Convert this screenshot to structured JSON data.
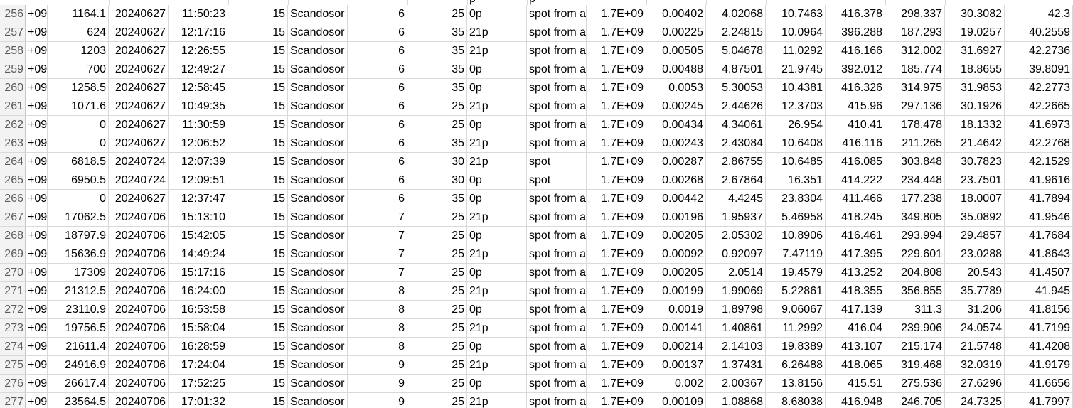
{
  "sheet": {
    "top_partial": [
      "p",
      "p"
    ],
    "rows": [
      {
        "n": "256",
        "c": [
          "+09",
          "1164.1",
          "20240627",
          "11:50:23",
          "15",
          "Scandosor",
          "6",
          "25",
          "0p",
          "spot from a",
          "1.7E+09",
          "0.00402",
          "4.02068",
          "10.7463",
          "416.378",
          "298.337",
          "30.3082",
          "42.3"
        ]
      },
      {
        "n": "257",
        "c": [
          "+09",
          "624",
          "20240627",
          "12:17:16",
          "15",
          "Scandosor",
          "6",
          "35",
          "21p",
          "spot from a",
          "1.7E+09",
          "0.00225",
          "2.24815",
          "10.0964",
          "396.288",
          "187.293",
          "19.0257",
          "40.2559"
        ]
      },
      {
        "n": "258",
        "c": [
          "+09",
          "1203",
          "20240627",
          "12:26:55",
          "15",
          "Scandosor",
          "6",
          "35",
          "21p",
          "spot from a",
          "1.7E+09",
          "0.00505",
          "5.04678",
          "11.0292",
          "416.166",
          "312.002",
          "31.6927",
          "42.2736"
        ]
      },
      {
        "n": "259",
        "c": [
          "+09",
          "700",
          "20240627",
          "12:49:27",
          "15",
          "Scandosor",
          "6",
          "35",
          "0p",
          "spot from a",
          "1.7E+09",
          "0.00488",
          "4.87501",
          "21.9745",
          "392.012",
          "185.774",
          "18.8655",
          "39.8091"
        ]
      },
      {
        "n": "260",
        "c": [
          "+09",
          "1258.5",
          "20240627",
          "12:58:45",
          "15",
          "Scandosor",
          "6",
          "35",
          "0p",
          "spot from a",
          "1.7E+09",
          "0.0053",
          "5.30053",
          "10.4381",
          "416.326",
          "314.975",
          "31.9853",
          "42.2773"
        ]
      },
      {
        "n": "261",
        "c": [
          "+09",
          "1071.6",
          "20240627",
          "10:49:35",
          "15",
          "Scandosor",
          "6",
          "25",
          "21p",
          "spot from a",
          "1.7E+09",
          "0.00245",
          "2.44626",
          "12.3703",
          "415.96",
          "297.136",
          "30.1926",
          "42.2665"
        ]
      },
      {
        "n": "262",
        "c": [
          "+09",
          "0",
          "20240627",
          "11:30:59",
          "15",
          "Scandosor",
          "6",
          "25",
          "0p",
          "spot from a",
          "1.7E+09",
          "0.00434",
          "4.34061",
          "26.954",
          "410.41",
          "178.478",
          "18.1332",
          "41.6973"
        ]
      },
      {
        "n": "263",
        "c": [
          "+09",
          "0",
          "20240627",
          "12:06:52",
          "15",
          "Scandosor",
          "6",
          "35",
          "21p",
          "spot from a",
          "1.7E+09",
          "0.00243",
          "2.43084",
          "10.6408",
          "416.116",
          "211.265",
          "21.4642",
          "42.2768"
        ]
      },
      {
        "n": "264",
        "c": [
          "+09",
          "6818.5",
          "20240724",
          "12:07:39",
          "15",
          "Scandosor",
          "6",
          "30",
          "21p",
          "spot",
          "1.7E+09",
          "0.00287",
          "2.86755",
          "10.6485",
          "416.085",
          "303.848",
          "30.7823",
          "42.1529"
        ]
      },
      {
        "n": "265",
        "c": [
          "+09",
          "6950.5",
          "20240724",
          "12:09:51",
          "15",
          "Scandosor",
          "6",
          "30",
          "0p",
          "spot",
          "1.7E+09",
          "0.00268",
          "2.67864",
          "16.351",
          "414.222",
          "234.448",
          "23.7501",
          "41.9616"
        ]
      },
      {
        "n": "266",
        "c": [
          "+09",
          "0",
          "20240627",
          "12:37:47",
          "15",
          "Scandosor",
          "6",
          "35",
          "0p",
          "spot from a",
          "1.7E+09",
          "0.00442",
          "4.4245",
          "23.8304",
          "411.466",
          "177.238",
          "18.0007",
          "41.7894"
        ]
      },
      {
        "n": "267",
        "c": [
          "+09",
          "17062.5",
          "20240706",
          "15:13:10",
          "15",
          "Scandosor",
          "7",
          "25",
          "21p",
          "spot from a",
          "1.7E+09",
          "0.00196",
          "1.95937",
          "5.46958",
          "418.245",
          "349.805",
          "35.0892",
          "41.9546"
        ]
      },
      {
        "n": "268",
        "c": [
          "+09",
          "18797.9",
          "20240706",
          "15:42:05",
          "15",
          "Scandosor",
          "7",
          "25",
          "0p",
          "spot from a",
          "1.7E+09",
          "0.00205",
          "2.05302",
          "10.8906",
          "416.461",
          "293.994",
          "29.4857",
          "41.7684"
        ]
      },
      {
        "n": "269",
        "c": [
          "+09",
          "15636.9",
          "20240706",
          "14:49:24",
          "15",
          "Scandosor",
          "7",
          "25",
          "21p",
          "spot from a",
          "1.7E+09",
          "0.00092",
          "0.92097",
          "7.47119",
          "417.395",
          "229.601",
          "23.0288",
          "41.8643"
        ]
      },
      {
        "n": "270",
        "c": [
          "+09",
          "17309",
          "20240706",
          "15:17:16",
          "15",
          "Scandosor",
          "7",
          "25",
          "0p",
          "spot from a",
          "1.7E+09",
          "0.00205",
          "2.0514",
          "19.4579",
          "413.252",
          "204.808",
          "20.543",
          "41.4507"
        ]
      },
      {
        "n": "271",
        "c": [
          "+09",
          "21312.5",
          "20240706",
          "16:24:00",
          "15",
          "Scandosor",
          "8",
          "25",
          "21p",
          "spot from a",
          "1.7E+09",
          "0.00199",
          "1.99069",
          "5.22861",
          "418.355",
          "356.855",
          "35.7789",
          "41.945"
        ]
      },
      {
        "n": "272",
        "c": [
          "+09",
          "23110.9",
          "20240706",
          "16:53:58",
          "15",
          "Scandosor",
          "8",
          "25",
          "0p",
          "spot from a",
          "1.7E+09",
          "0.0019",
          "1.89798",
          "9.06067",
          "417.139",
          "311.3",
          "31.206",
          "41.8156"
        ]
      },
      {
        "n": "273",
        "c": [
          "+09",
          "19756.5",
          "20240706",
          "15:58:04",
          "15",
          "Scandosor",
          "8",
          "25",
          "21p",
          "spot from a",
          "1.7E+09",
          "0.00141",
          "1.40861",
          "11.2992",
          "416.04",
          "239.906",
          "24.0574",
          "41.7199"
        ]
      },
      {
        "n": "274",
        "c": [
          "+09",
          "21611.4",
          "20240706",
          "16:28:59",
          "15",
          "Scandosor",
          "8",
          "25",
          "0p",
          "spot from a",
          "1.7E+09",
          "0.00214",
          "2.14103",
          "19.8389",
          "413.107",
          "215.174",
          "21.5748",
          "41.4208"
        ]
      },
      {
        "n": "275",
        "c": [
          "+09",
          "24916.9",
          "20240706",
          "17:24:04",
          "15",
          "Scandosor",
          "9",
          "25",
          "21p",
          "spot from a",
          "1.7E+09",
          "0.00137",
          "1.37431",
          "6.26488",
          "418.065",
          "319.468",
          "32.0319",
          "41.9179"
        ]
      },
      {
        "n": "276",
        "c": [
          "+09",
          "26617.4",
          "20240706",
          "17:52:25",
          "15",
          "Scandosor",
          "9",
          "25",
          "0p",
          "spot from a",
          "1.7E+09",
          "0.002",
          "2.00367",
          "13.8156",
          "415.51",
          "275.536",
          "27.6296",
          "41.6656"
        ]
      },
      {
        "n": "277",
        "c": [
          "+09",
          "23564.5",
          "20240706",
          "17:01:32",
          "15",
          "Scandosor",
          "9",
          "25",
          "21p",
          "spot from a",
          "1.7E+09",
          "0.00109",
          "1.08868",
          "8.68038",
          "416.948",
          "246.705",
          "24.7325",
          "41.7997"
        ]
      }
    ]
  }
}
